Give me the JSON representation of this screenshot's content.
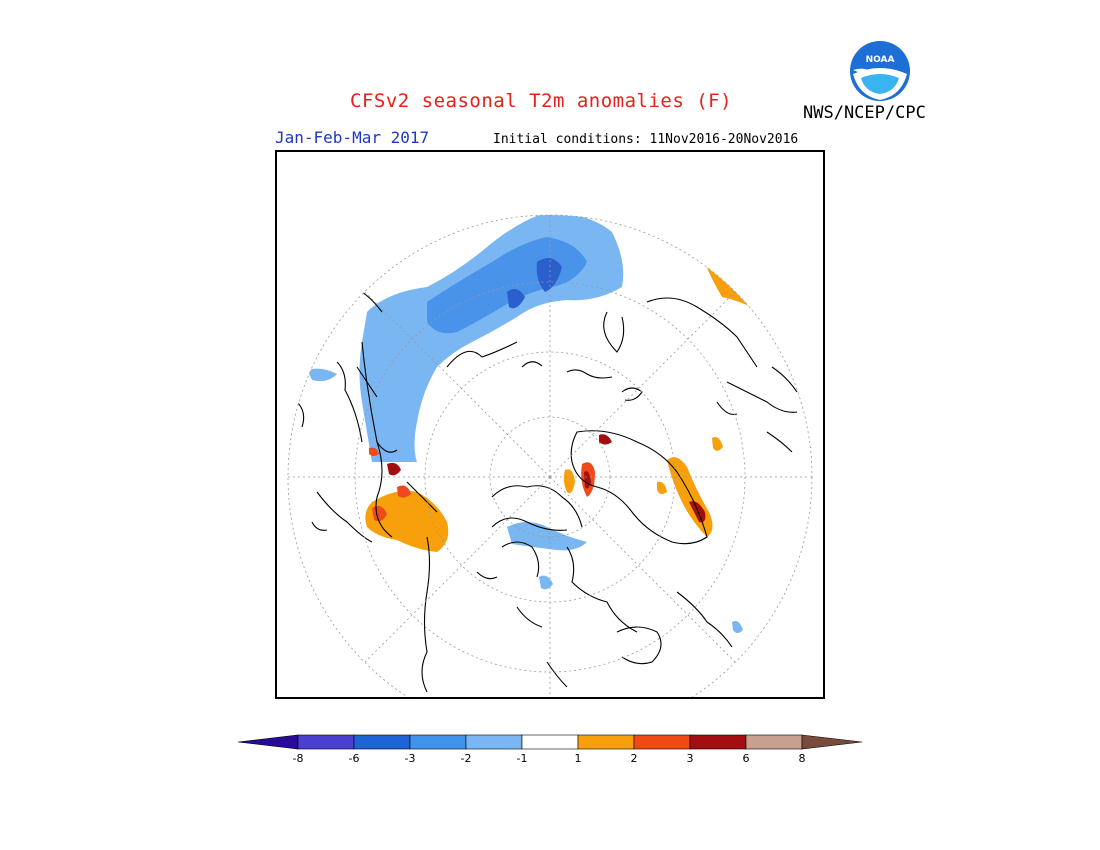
{
  "title": "CFSv2 seasonal T2m anomalies (F)",
  "season": "Jan-Feb-Mar 2017",
  "initial_conditions": "Initial conditions: 11Nov2016-20Nov2016",
  "agency": "NWS/NCEP/CPC",
  "logo_text": "NOAA",
  "colors": {
    "title": "#e8201c",
    "season": "#1f37c8",
    "light_blue": "#7ab6f2",
    "mid_blue": "#4a93ea",
    "dark_blue": "#2a5fcc",
    "orange": "#f8a00c",
    "red_orange": "#ef4a1b",
    "dark_red": "#a50e10"
  },
  "colorbar": {
    "segments": [
      {
        "color": "#2a0a9a",
        "label": "< -8"
      },
      {
        "color": "#4a3fd0",
        "label": "-8 to -6"
      },
      {
        "color": "#1e64d6",
        "label": "-6 to -3"
      },
      {
        "color": "#3f93ea",
        "label": "-3 to -2"
      },
      {
        "color": "#7ab6f2",
        "label": "-2 to -1"
      },
      {
        "color": "#ffffff",
        "label": "-1 to 1"
      },
      {
        "color": "#f8a00c",
        "label": "1 to 2"
      },
      {
        "color": "#f04a12",
        "label": "2 to 3"
      },
      {
        "color": "#a50e10",
        "label": "3 to 6"
      },
      {
        "color": "#c9a08e",
        "label": "6 to 8"
      },
      {
        "color": "#7a4a3c",
        "label": "> 8"
      }
    ],
    "ticks": [
      "-8",
      "-6",
      "-3",
      "-2",
      "-1",
      "1",
      "2",
      "3",
      "6",
      "8"
    ]
  }
}
